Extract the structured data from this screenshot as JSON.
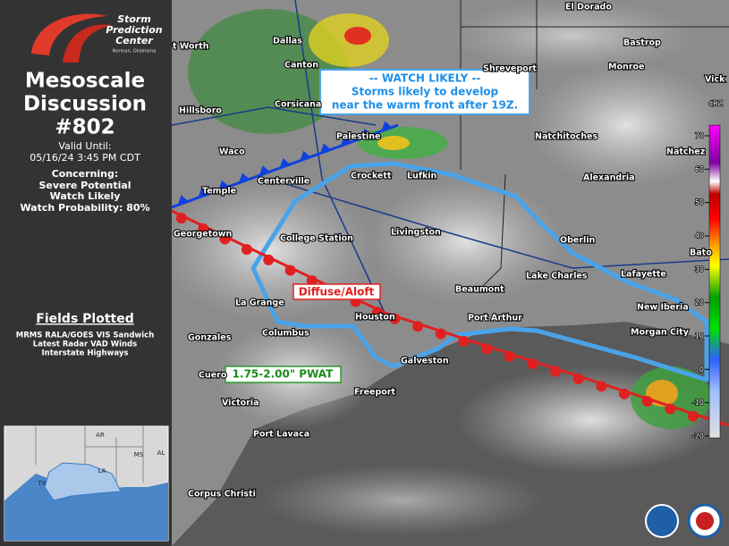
{
  "logo": {
    "line1": "Storm",
    "line2": "Prediction",
    "line3": "Center",
    "sub": "Norman, Oklahoma"
  },
  "sidebar": {
    "title_line1": "Mesoscale",
    "title_line2": "Discussion",
    "number": "#802",
    "valid_label": "Valid Until:",
    "valid_time": "05/16/24 3:45 PM CDT",
    "concerning_label": "Concerning:",
    "concerning": [
      "Severe Potential",
      "Watch Likely"
    ],
    "watch_probability": "Watch Probability: 80%",
    "fields_title": "Fields Plotted",
    "fields": [
      "MRMS RALA/GOES VIS Sandwich",
      "Latest Radar VAD Winds",
      "Interstate Highways"
    ]
  },
  "inset": {
    "labels": [
      "AR",
      "MS",
      "AL",
      "LA",
      "TX"
    ]
  },
  "map": {
    "cities": [
      "El Dorado",
      "Bastrop",
      "t Worth",
      "Dallas",
      "Canton",
      "Shreveport",
      "Monroe",
      "Vick",
      "Hillsboro",
      "Corsicana",
      "Natchitoches",
      "Natchez",
      "Palestine",
      "Waco",
      "Crockett",
      "Lufkin",
      "Alexandria",
      "Centerville",
      "Temple",
      "Georgetown",
      "College Station",
      "Livingston",
      "Oberlin",
      "Bato",
      "Lafayette",
      "Lake Charles",
      "Beaumont",
      "La Grange",
      "Houston",
      "Port Arthur",
      "New Iberia",
      "Gonzales",
      "Columbus",
      "Morgan City",
      "Galveston",
      "Cuero",
      "Freeport",
      "Victoria",
      "Port Lavaca",
      "Corpus Christi"
    ],
    "annotations": {
      "watch": [
        "-- WATCH LIKELY --",
        "Storms likely to develop",
        "near the warm front after 19Z."
      ],
      "front": "Diffuse/Aloft",
      "pwat": "1.75-2.00\" PWAT"
    }
  },
  "colorbar": {
    "unit": "dBZ",
    "ticks": [
      70,
      60,
      50,
      40,
      30,
      20,
      10,
      0,
      -10,
      -20
    ]
  }
}
